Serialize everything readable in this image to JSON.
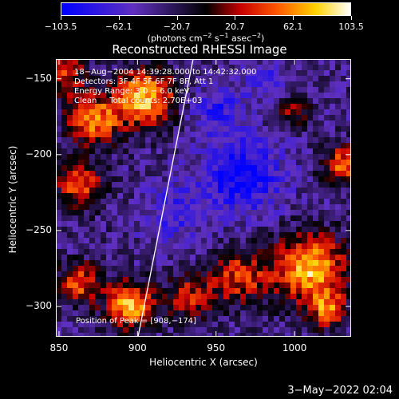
{
  "colorbar": {
    "ticks": [
      "−103.5",
      "−62.1",
      "−20.7",
      "20.7",
      "62.1",
      "103.5"
    ],
    "units_prefix": "(photons cm",
    "units_sup1": "−2",
    "units_mid1": " s",
    "units_sup2": "−1",
    "units_mid2": " asec",
    "units_sup3": "−2",
    "units_suffix": ")"
  },
  "title": "Reconstructed RHESSI Image",
  "info": {
    "line1": "18−Aug−2004 14:39:28.000 to 14:42:32.000",
    "line2": "Detectors: 3F 4F 5F 6F 7F 8F, Att 1",
    "line3": "Energy Range: 3.0 − 6.0 keV",
    "line4": "Clean     Total counts: 2.70E+03"
  },
  "peak": "Position of Peak = [908,−174]",
  "axes": {
    "xlabel": "Heliocentric X (arcsec)",
    "ylabel": "Heliocentric Y (arcsec)",
    "xticks": [
      "850",
      "900",
      "950",
      "1000"
    ],
    "yticks": [
      "−150",
      "−200",
      "−250",
      "−300"
    ]
  },
  "timestamp": "3−May−2022 02:04",
  "chart_data": {
    "type": "heatmap",
    "title": "Reconstructed RHESSI Image",
    "xlabel": "Heliocentric X (arcsec)",
    "ylabel": "Heliocentric Y (arcsec)",
    "xlim": [
      848,
      1036
    ],
    "ylim": [
      -320,
      -137
    ],
    "colorbar_range": [
      -103.5,
      103.5
    ],
    "peak": [
      908,
      -174
    ]
  }
}
